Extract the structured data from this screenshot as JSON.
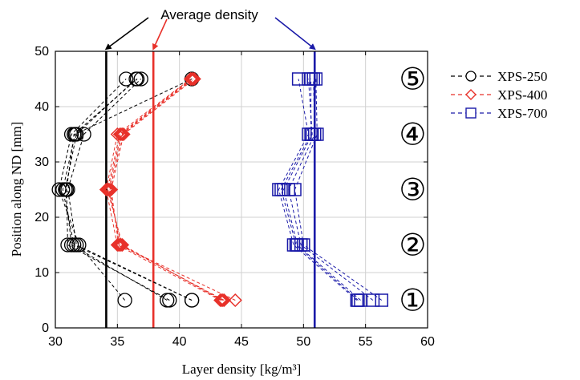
{
  "chart_data": {
    "type": "scatter",
    "title": "",
    "xlabel": "Layer density [kg/m³]",
    "ylabel": "Position along ND [mm]",
    "xlim": [
      30,
      60
    ],
    "ylim": [
      0,
      50
    ],
    "xticks": [
      30,
      35,
      40,
      45,
      50,
      55,
      60
    ],
    "yticks": [
      0,
      10,
      20,
      30,
      40,
      50
    ],
    "grid": true,
    "legend_position": "right, outside plot",
    "annotation": "Average density",
    "layer_labels": [
      "①",
      "②",
      "③",
      "④",
      "⑤"
    ],
    "layer_positions": [
      5,
      15,
      25,
      35,
      45
    ],
    "series": [
      {
        "name": "XPS-250",
        "marker": "circle",
        "color": "#000000",
        "average_density": 34.1,
        "profiles": [
          [
            {
              "x": 35.6,
              "y": 5
            },
            {
              "x": 31.9,
              "y": 15
            },
            {
              "x": 30.3,
              "y": 25
            },
            {
              "x": 31.3,
              "y": 35
            },
            {
              "x": 35.7,
              "y": 45
            }
          ],
          [
            {
              "x": 39.0,
              "y": 5
            },
            {
              "x": 31.3,
              "y": 15
            },
            {
              "x": 30.8,
              "y": 25
            },
            {
              "x": 31.7,
              "y": 35
            },
            {
              "x": 36.5,
              "y": 45
            }
          ],
          [
            {
              "x": 41.0,
              "y": 5
            },
            {
              "x": 31.7,
              "y": 15
            },
            {
              "x": 31.0,
              "y": 25
            },
            {
              "x": 32.3,
              "y": 35
            },
            {
              "x": 36.9,
              "y": 45
            }
          ],
          [
            {
              "x": 39.2,
              "y": 5
            },
            {
              "x": 31.0,
              "y": 15
            },
            {
              "x": 30.9,
              "y": 25
            },
            {
              "x": 31.5,
              "y": 35
            },
            {
              "x": 36.6,
              "y": 45
            }
          ],
          [
            {
              "x": 41.0,
              "y": 5
            },
            {
              "x": 31.5,
              "y": 15
            },
            {
              "x": 30.6,
              "y": 25
            },
            {
              "x": 31.6,
              "y": 35
            },
            {
              "x": 41.0,
              "y": 45
            }
          ]
        ]
      },
      {
        "name": "XPS-400",
        "marker": "diamond",
        "color": "#e8312a",
        "average_density": 37.9,
        "profiles": [
          [
            {
              "x": 43.3,
              "y": 5
            },
            {
              "x": 35.0,
              "y": 15
            },
            {
              "x": 34.1,
              "y": 25
            },
            {
              "x": 35.0,
              "y": 35
            },
            {
              "x": 40.9,
              "y": 45
            }
          ],
          [
            {
              "x": 43.5,
              "y": 5
            },
            {
              "x": 35.3,
              "y": 15
            },
            {
              "x": 34.3,
              "y": 25
            },
            {
              "x": 35.3,
              "y": 35
            },
            {
              "x": 41.0,
              "y": 45
            }
          ],
          [
            {
              "x": 44.5,
              "y": 5
            },
            {
              "x": 35.1,
              "y": 15
            },
            {
              "x": 34.5,
              "y": 25
            },
            {
              "x": 35.5,
              "y": 35
            },
            {
              "x": 41.2,
              "y": 45
            }
          ],
          [
            {
              "x": 43.4,
              "y": 5
            },
            {
              "x": 35.4,
              "y": 15
            },
            {
              "x": 34.2,
              "y": 25
            },
            {
              "x": 35.2,
              "y": 35
            },
            {
              "x": 40.9,
              "y": 45
            }
          ],
          [
            {
              "x": 43.6,
              "y": 5
            },
            {
              "x": 35.2,
              "y": 15
            },
            {
              "x": 34.4,
              "y": 25
            },
            {
              "x": 35.4,
              "y": 35
            },
            {
              "x": 41.1,
              "y": 45
            }
          ]
        ]
      },
      {
        "name": "XPS-700",
        "marker": "square",
        "color": "#1a1aa8",
        "average_density": 50.9,
        "profiles": [
          [
            {
              "x": 54.3,
              "y": 5
            },
            {
              "x": 49.2,
              "y": 15
            },
            {
              "x": 48.0,
              "y": 25
            },
            {
              "x": 50.4,
              "y": 35
            },
            {
              "x": 49.6,
              "y": 45
            }
          ],
          [
            {
              "x": 54.6,
              "y": 5
            },
            {
              "x": 49.5,
              "y": 15
            },
            {
              "x": 48.4,
              "y": 25
            },
            {
              "x": 50.7,
              "y": 35
            },
            {
              "x": 50.4,
              "y": 45
            }
          ],
          [
            {
              "x": 55.6,
              "y": 5
            },
            {
              "x": 49.8,
              "y": 15
            },
            {
              "x": 48.8,
              "y": 25
            },
            {
              "x": 50.9,
              "y": 35
            },
            {
              "x": 50.8,
              "y": 45
            }
          ],
          [
            {
              "x": 56.3,
              "y": 5
            },
            {
              "x": 50.0,
              "y": 15
            },
            {
              "x": 49.3,
              "y": 25
            },
            {
              "x": 51.1,
              "y": 35
            },
            {
              "x": 51.0,
              "y": 45
            }
          ],
          [
            {
              "x": 54.4,
              "y": 5
            },
            {
              "x": 49.4,
              "y": 15
            },
            {
              "x": 48.2,
              "y": 25
            },
            {
              "x": 50.6,
              "y": 35
            },
            {
              "x": 50.6,
              "y": 45
            }
          ]
        ]
      }
    ]
  }
}
